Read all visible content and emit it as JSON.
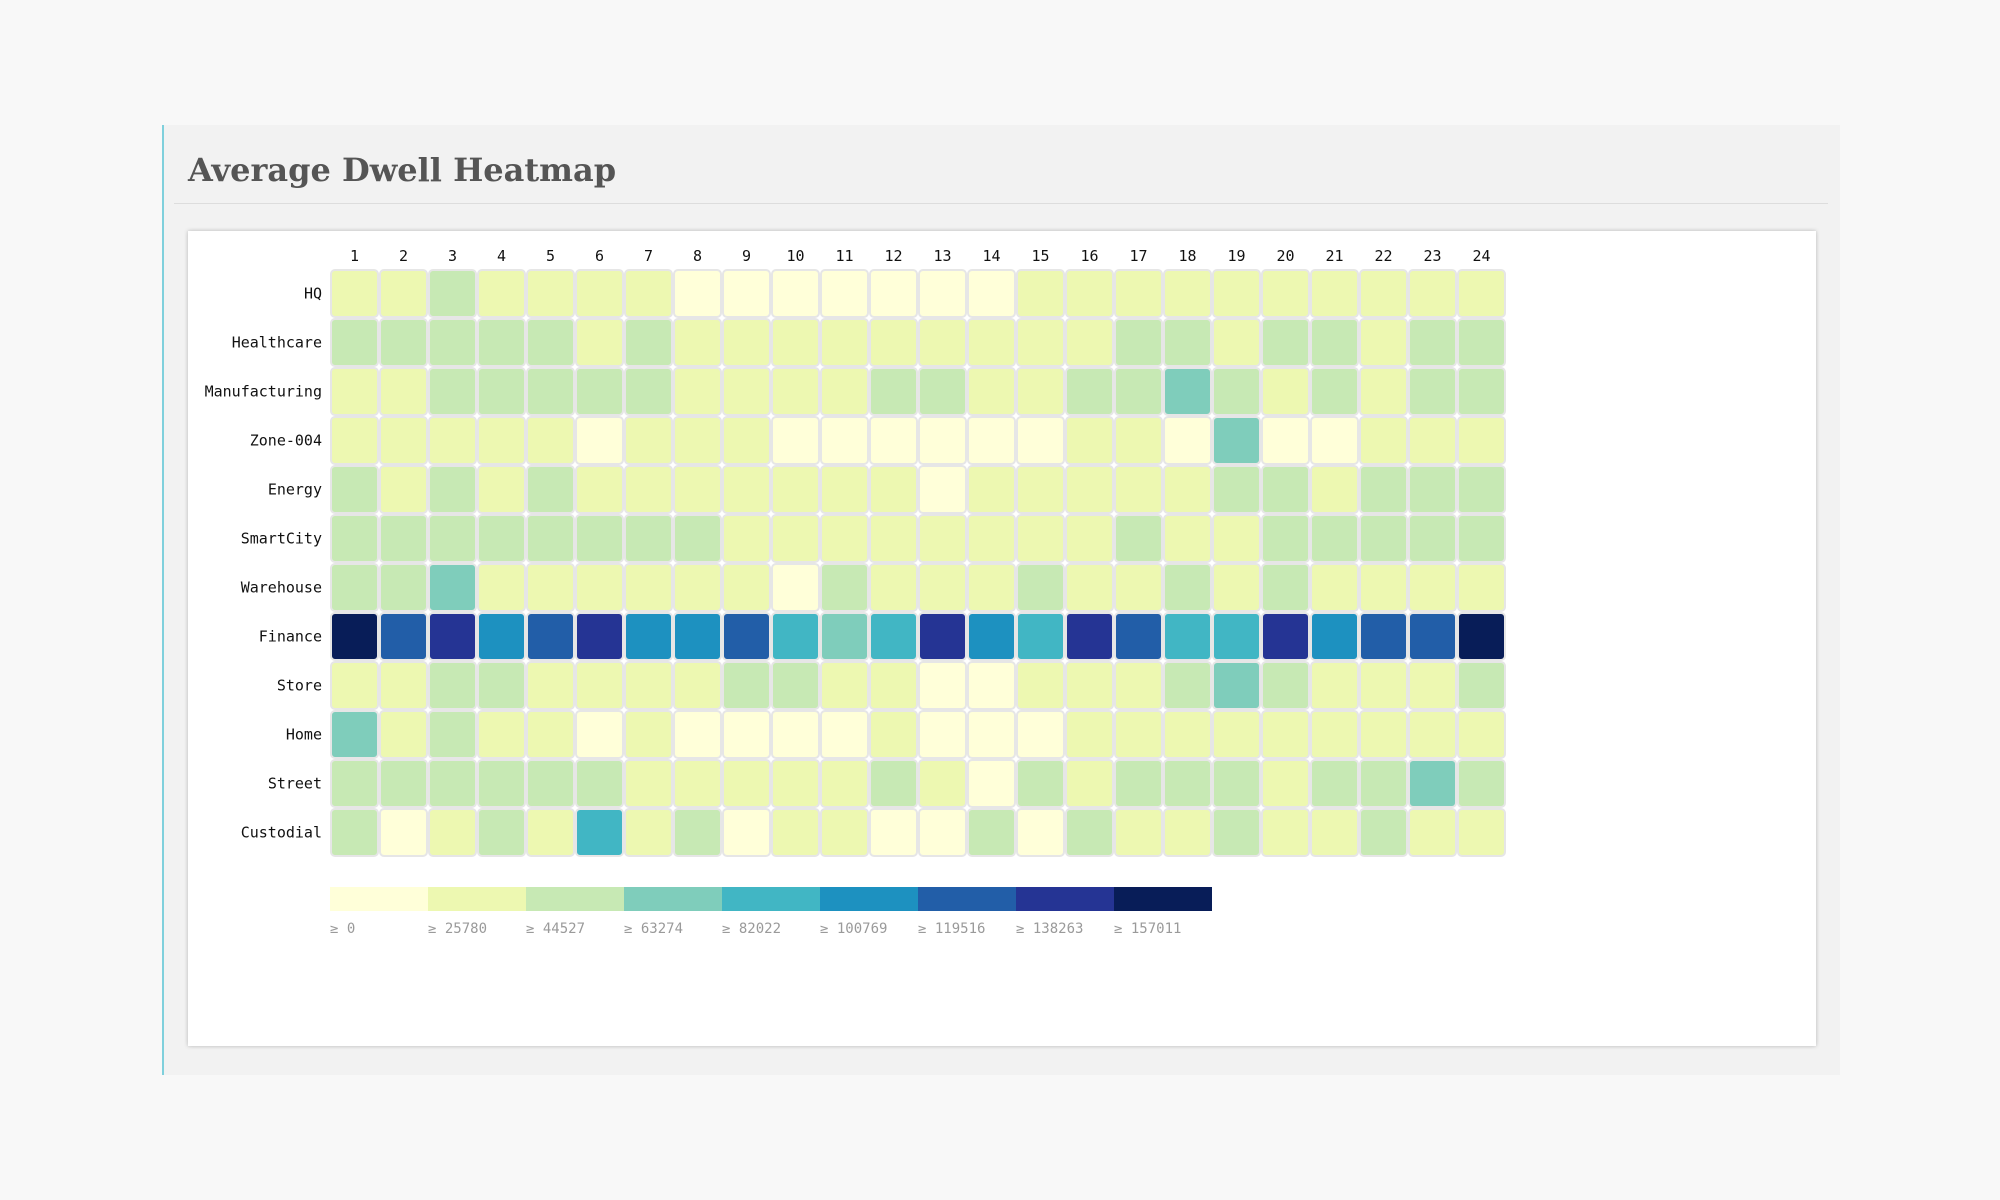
{
  "title": "Average Dwell Heatmap",
  "chart_data": {
    "type": "heatmap",
    "title": "Average Dwell Heatmap",
    "columns": [
      "1",
      "2",
      "3",
      "4",
      "5",
      "6",
      "7",
      "8",
      "9",
      "10",
      "11",
      "12",
      "13",
      "14",
      "15",
      "16",
      "17",
      "18",
      "19",
      "20",
      "21",
      "22",
      "23",
      "24"
    ],
    "rows": [
      "HQ",
      "Healthcare",
      "Manufacturing",
      "Zone-004",
      "Energy",
      "SmartCity",
      "Warehouse",
      "Finance",
      "Store",
      "Home",
      "Street",
      "Custodial"
    ],
    "values": [
      [
        35000,
        35000,
        50000,
        35000,
        35000,
        35000,
        35000,
        13000,
        13000,
        13000,
        13000,
        13000,
        13000,
        13000,
        35000,
        35000,
        35000,
        35000,
        35000,
        35000,
        35000,
        35000,
        35000,
        35000
      ],
      [
        50000,
        50000,
        50000,
        50000,
        50000,
        35000,
        50000,
        35000,
        35000,
        35000,
        35000,
        35000,
        35000,
        35000,
        35000,
        35000,
        50000,
        50000,
        35000,
        50000,
        50000,
        35000,
        50000,
        50000
      ],
      [
        35000,
        35000,
        50000,
        50000,
        50000,
        50000,
        50000,
        35000,
        35000,
        35000,
        35000,
        50000,
        50000,
        35000,
        35000,
        50000,
        50000,
        70000,
        50000,
        35000,
        50000,
        35000,
        50000,
        50000
      ],
      [
        35000,
        35000,
        35000,
        35000,
        35000,
        13000,
        35000,
        35000,
        35000,
        13000,
        13000,
        13000,
        13000,
        13000,
        13000,
        35000,
        35000,
        13000,
        70000,
        13000,
        13000,
        35000,
        35000,
        35000
      ],
      [
        50000,
        35000,
        50000,
        35000,
        50000,
        35000,
        35000,
        35000,
        35000,
        35000,
        35000,
        35000,
        13000,
        35000,
        35000,
        35000,
        35000,
        35000,
        50000,
        50000,
        35000,
        50000,
        50000,
        50000
      ],
      [
        50000,
        50000,
        50000,
        50000,
        50000,
        50000,
        50000,
        50000,
        35000,
        35000,
        35000,
        35000,
        35000,
        35000,
        35000,
        35000,
        50000,
        35000,
        35000,
        50000,
        50000,
        50000,
        50000,
        50000
      ],
      [
        50000,
        50000,
        70000,
        35000,
        35000,
        35000,
        35000,
        35000,
        35000,
        13000,
        50000,
        35000,
        35000,
        35000,
        50000,
        35000,
        35000,
        50000,
        35000,
        50000,
        35000,
        35000,
        35000,
        35000
      ],
      [
        160000,
        125000,
        145000,
        105000,
        125000,
        145000,
        105000,
        105000,
        125000,
        90000,
        70000,
        90000,
        145000,
        105000,
        90000,
        145000,
        125000,
        90000,
        90000,
        145000,
        105000,
        125000,
        125000,
        160000
      ],
      [
        35000,
        35000,
        50000,
        50000,
        35000,
        35000,
        35000,
        35000,
        50000,
        50000,
        35000,
        35000,
        13000,
        13000,
        35000,
        35000,
        35000,
        50000,
        70000,
        50000,
        35000,
        35000,
        35000,
        50000
      ],
      [
        70000,
        35000,
        50000,
        35000,
        35000,
        13000,
        35000,
        13000,
        13000,
        13000,
        13000,
        35000,
        13000,
        13000,
        13000,
        35000,
        35000,
        35000,
        35000,
        35000,
        35000,
        35000,
        35000,
        35000
      ],
      [
        50000,
        50000,
        50000,
        50000,
        50000,
        50000,
        35000,
        35000,
        35000,
        35000,
        35000,
        50000,
        35000,
        13000,
        50000,
        35000,
        50000,
        50000,
        50000,
        35000,
        50000,
        50000,
        70000,
        50000
      ],
      [
        50000,
        13000,
        35000,
        50000,
        35000,
        90000,
        35000,
        50000,
        13000,
        35000,
        35000,
        13000,
        13000,
        50000,
        13000,
        50000,
        35000,
        35000,
        50000,
        35000,
        35000,
        50000,
        35000,
        35000
      ]
    ],
    "thresholds": [
      0,
      25780,
      44527,
      63274,
      82022,
      100769,
      119516,
      138263,
      157011
    ],
    "colors": [
      "#ffffd9",
      "#edf8b1",
      "#c7e9b4",
      "#7fcdbb",
      "#41b6c4",
      "#1d91c0",
      "#225ea8",
      "#253494",
      "#081d58"
    ],
    "legend_labels": [
      "≥ 0",
      "≥ 25780",
      "≥ 44527",
      "≥ 63274",
      "≥ 82022",
      "≥ 100769",
      "≥ 119516",
      "≥ 138263",
      "≥ 157011"
    ],
    "legend_placement": "bottom"
  }
}
